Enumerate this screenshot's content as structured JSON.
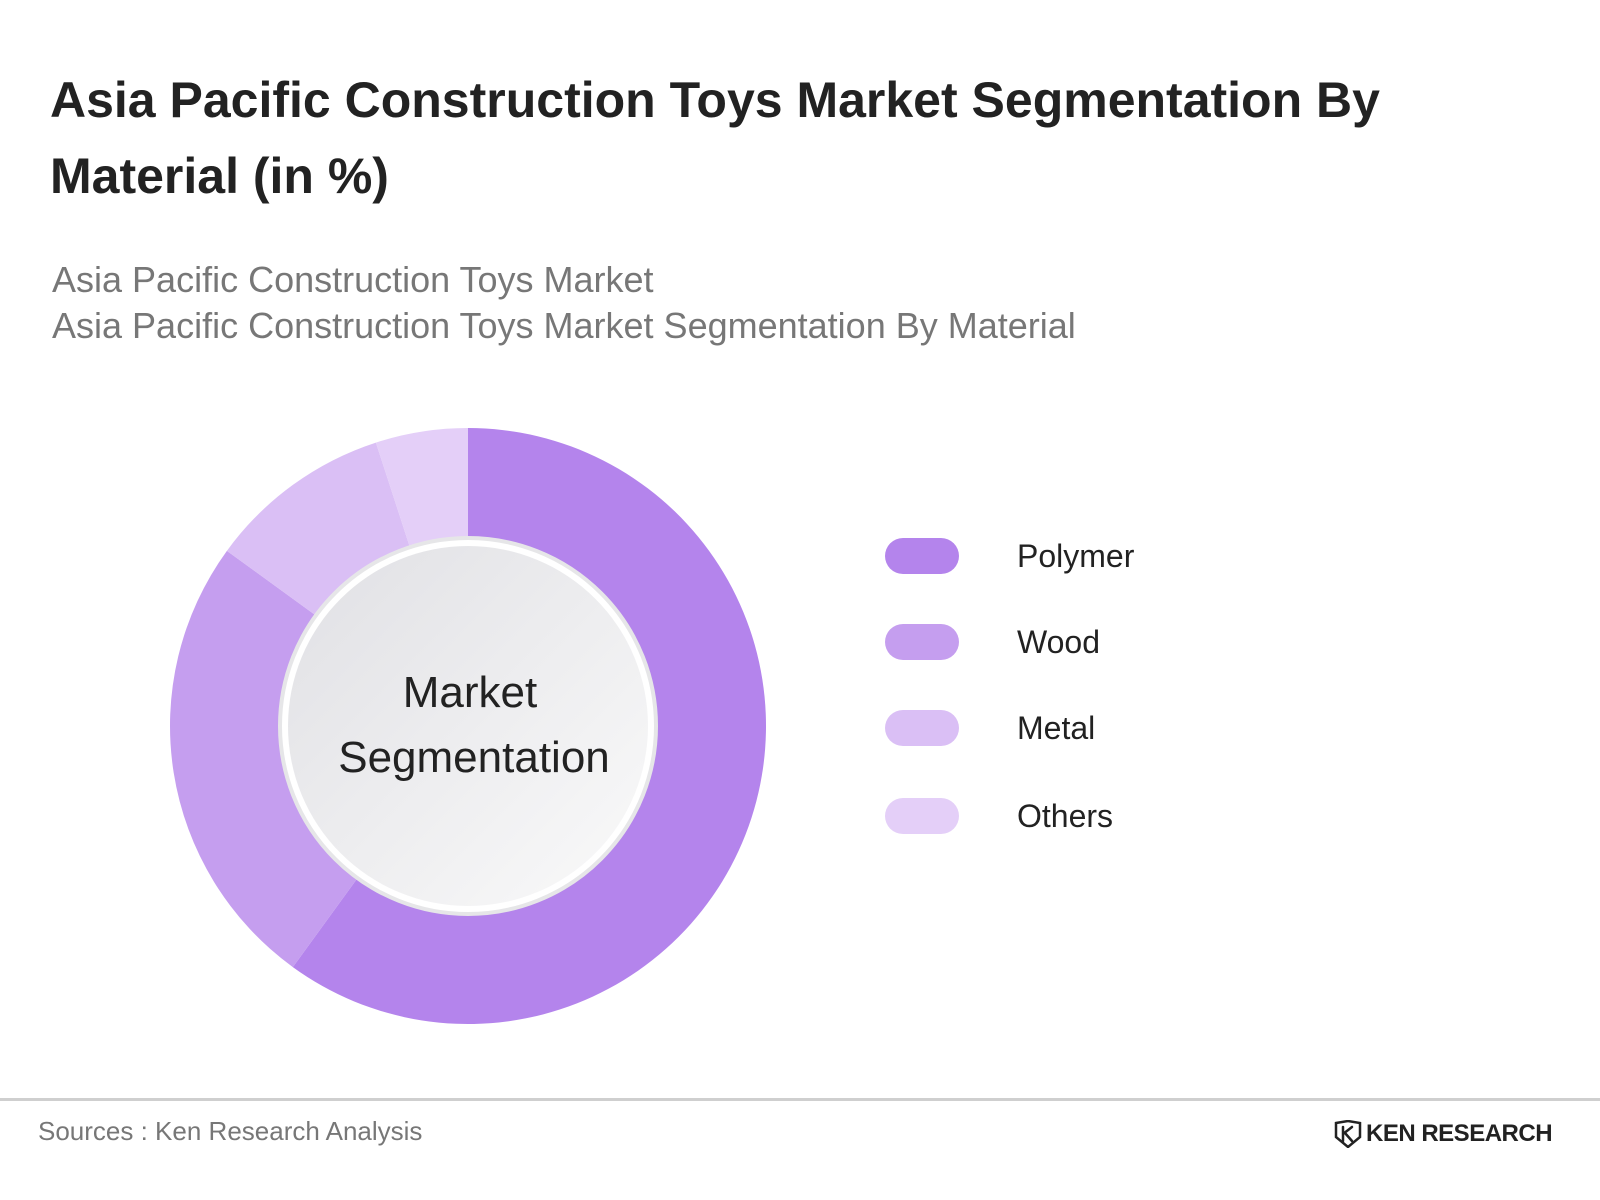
{
  "header": {
    "title": "Asia Pacific Construction Toys Market Segmentation By Material (in %)",
    "subtitle_line1": "Asia Pacific Construction Toys Market",
    "subtitle_line2": "Asia Pacific Construction Toys Market Segmentation By Material"
  },
  "chart_data": {
    "type": "pie",
    "variant": "donut",
    "title": "Asia Pacific Construction Toys Market Segmentation By Material (in %)",
    "center_label_line1": "Market",
    "center_label_line2": "Segmentation",
    "categories": [
      "Polymer",
      "Wood",
      "Metal",
      "Others"
    ],
    "values": [
      60,
      25,
      10,
      5
    ],
    "colors": [
      "#b484ec",
      "#c59eef",
      "#dabff5",
      "#e4cff8"
    ],
    "legend_position": "right"
  },
  "footer": {
    "sources": "Sources : Ken Research Analysis",
    "brand": "KEN RESEARCH",
    "brand_separator": "|"
  }
}
